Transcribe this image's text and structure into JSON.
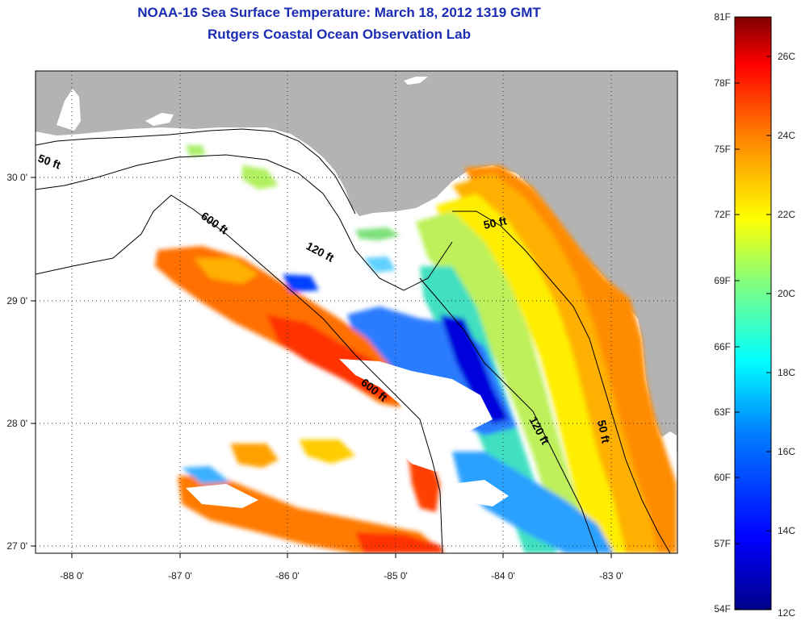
{
  "title_line1": "NOAA-16 Sea Surface Temperature:  March 18, 2012 1319 GMT",
  "title_line2": "Rutgers Coastal Ocean Observation Lab",
  "map": {
    "lon_ticks": [
      "-88 0'",
      "-87 0'",
      "-86 0'",
      "-85 0'",
      "-84 0'",
      "-83 0'"
    ],
    "lat_ticks": [
      "30 0'",
      "29 0'",
      "28 0'",
      "27 0'"
    ],
    "lon_range": [
      -88.35,
      -82.35
    ],
    "lat_range": [
      26.95,
      30.9
    ],
    "grid": true,
    "land_color": "#b3b3b3",
    "no_data_color": "#ffffff"
  },
  "contours": [
    {
      "label": "50 ft"
    },
    {
      "label": "120 ft"
    },
    {
      "label": "600 ft"
    },
    {
      "label": "50 ft"
    },
    {
      "label": "120 ft"
    },
    {
      "label": "600 ft"
    },
    {
      "label": "50 ft"
    }
  ],
  "colorbar": {
    "fahrenheit": [
      "81F",
      "78F",
      "75F",
      "72F",
      "69F",
      "66F",
      "63F",
      "60F",
      "57F",
      "54F"
    ],
    "celsius": [
      "26C",
      "24C",
      "22C",
      "20C",
      "18C",
      "16C",
      "14C",
      "12C"
    ],
    "colors": [
      "#00008b",
      "#0000ff",
      "#0080ff",
      "#00ffff",
      "#80ff80",
      "#ffff00",
      "#ff8000",
      "#ff0000",
      "#800000"
    ]
  }
}
